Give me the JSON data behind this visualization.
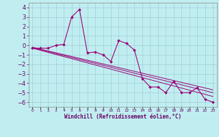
{
  "bg_color": "#c0eef0",
  "grid_color": "#a0ccd8",
  "line_color": "#990077",
  "xlabel": "Windchill (Refroidissement éolien,°C)",
  "xlim": [
    -0.5,
    23.5
  ],
  "ylim": [
    -6.5,
    4.5
  ],
  "yticks": [
    -6,
    -5,
    -4,
    -3,
    -2,
    -1,
    0,
    1,
    2,
    3,
    4
  ],
  "xticks": [
    0,
    1,
    2,
    3,
    4,
    5,
    6,
    7,
    8,
    9,
    10,
    11,
    12,
    13,
    14,
    15,
    16,
    17,
    18,
    19,
    20,
    21,
    22,
    23
  ],
  "scatter_x": [
    0,
    1,
    2,
    3,
    4,
    5,
    6,
    7,
    8,
    9,
    10,
    11,
    12,
    13,
    14,
    15,
    16,
    17,
    18,
    19,
    20,
    21,
    22,
    23
  ],
  "scatter_y": [
    -0.3,
    -0.3,
    -0.3,
    0.0,
    0.1,
    3.0,
    3.8,
    -0.8,
    -0.7,
    -1.0,
    -1.7,
    0.5,
    0.2,
    -0.5,
    -3.5,
    -4.4,
    -4.4,
    -5.0,
    -3.8,
    -5.0,
    -5.0,
    -4.5,
    -5.7,
    -6.0
  ],
  "line1_x": [
    0,
    23
  ],
  "line1_y": [
    -0.3,
    -5.4
  ],
  "line2_x": [
    0,
    23
  ],
  "line2_y": [
    -0.25,
    -5.0
  ],
  "line3_x": [
    0,
    23
  ],
  "line3_y": [
    -0.2,
    -4.7
  ],
  "tick_color": "#660066",
  "label_color": "#660066",
  "xlabel_fontsize": 5.5,
  "ytick_fontsize": 6.0,
  "xtick_fontsize": 4.2
}
